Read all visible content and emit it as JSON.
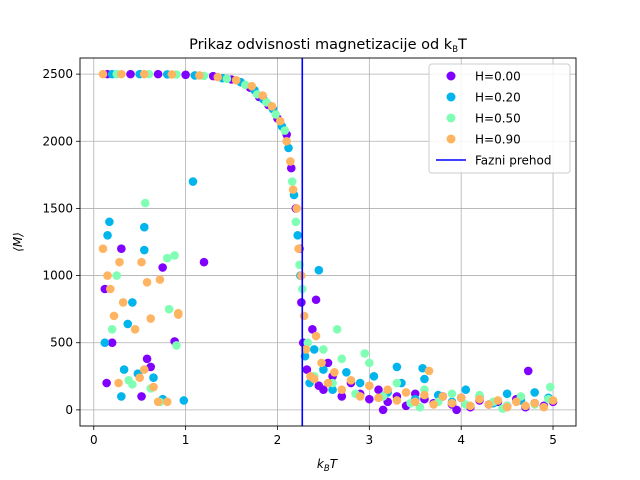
{
  "chart_data": {
    "type": "scatter",
    "title": "Prikaz odvisnosti magnetizacije od k",
    "title_sub": "B",
    "title_tail": "T",
    "xlabel": "k",
    "xlabel_sub": "B",
    "xlabel_tail": "T",
    "ylabel": "⟨M⟩",
    "xlim": [
      -0.15,
      5.25
    ],
    "ylim": [
      -120,
      2620
    ],
    "xticks": [
      0,
      1,
      2,
      3,
      4,
      5
    ],
    "yticks": [
      0,
      500,
      1000,
      1500,
      2000,
      2500
    ],
    "grid": true,
    "legend_position": "top-right",
    "phase_transition": {
      "name": "Fazni prehod",
      "x": 2.27,
      "color": "#0000ff"
    },
    "series": [
      {
        "name": "H=0.00",
        "color": "#8000ff",
        "points": [
          [
            0.12,
            900
          ],
          [
            0.14,
            200
          ],
          [
            0.2,
            500
          ],
          [
            0.3,
            1200
          ],
          [
            0.52,
            100
          ],
          [
            0.58,
            380
          ],
          [
            0.62,
            320
          ],
          [
            0.75,
            1060
          ],
          [
            0.88,
            510
          ],
          [
            1.2,
            1100
          ],
          [
            0.15,
            2500
          ],
          [
            0.4,
            2500
          ],
          [
            0.7,
            2500
          ],
          [
            1.0,
            2495
          ],
          [
            1.3,
            2485
          ],
          [
            1.5,
            2460
          ],
          [
            1.7,
            2400
          ],
          [
            1.8,
            2330
          ],
          [
            1.9,
            2270
          ],
          [
            2.0,
            2170
          ],
          [
            2.1,
            2050
          ],
          [
            2.15,
            1800
          ],
          [
            2.2,
            1500
          ],
          [
            2.24,
            1200
          ],
          [
            2.26,
            800
          ],
          [
            2.28,
            500
          ],
          [
            2.32,
            300
          ],
          [
            2.38,
            600
          ],
          [
            2.45,
            180
          ],
          [
            2.5,
            150
          ],
          [
            2.6,
            250
          ],
          [
            2.7,
            100
          ],
          [
            2.8,
            200
          ],
          [
            2.9,
            120
          ],
          [
            3.0,
            80
          ],
          [
            3.1,
            150
          ],
          [
            3.2,
            60
          ],
          [
            3.3,
            100
          ],
          [
            3.4,
            30
          ],
          [
            3.5,
            120
          ],
          [
            3.6,
            80
          ],
          [
            3.7,
            50
          ],
          [
            3.8,
            100
          ],
          [
            3.9,
            40
          ],
          [
            4.0,
            90
          ],
          [
            4.1,
            20
          ],
          [
            4.2,
            70
          ],
          [
            4.3,
            40
          ],
          [
            4.4,
            60
          ],
          [
            4.5,
            30
          ],
          [
            4.6,
            80
          ],
          [
            4.7,
            20
          ],
          [
            4.73,
            290
          ],
          [
            4.8,
            50
          ],
          [
            4.9,
            30
          ],
          [
            5.0,
            60
          ],
          [
            2.42,
            820
          ],
          [
            2.55,
            350
          ],
          [
            3.15,
            0
          ],
          [
            3.95,
            0
          ]
        ]
      },
      {
        "name": "H=0.20",
        "color": "#00b4ec",
        "points": [
          [
            0.12,
            500
          ],
          [
            0.15,
            1300
          ],
          [
            0.17,
            1400
          ],
          [
            0.3,
            100
          ],
          [
            0.33,
            300
          ],
          [
            0.37,
            640
          ],
          [
            0.42,
            800
          ],
          [
            0.48,
            270
          ],
          [
            0.55,
            1190
          ],
          [
            0.55,
            1360
          ],
          [
            0.75,
            80
          ],
          [
            0.98,
            70
          ],
          [
            1.08,
            1700
          ],
          [
            0.65,
            240
          ],
          [
            0.2,
            2500
          ],
          [
            0.5,
            2500
          ],
          [
            0.8,
            2498
          ],
          [
            1.1,
            2490
          ],
          [
            1.4,
            2470
          ],
          [
            1.6,
            2440
          ],
          [
            1.75,
            2380
          ],
          [
            1.85,
            2310
          ],
          [
            1.95,
            2240
          ],
          [
            2.05,
            2110
          ],
          [
            2.12,
            1950
          ],
          [
            2.18,
            1600
          ],
          [
            2.22,
            1300
          ],
          [
            2.25,
            1000
          ],
          [
            2.3,
            400
          ],
          [
            2.35,
            200
          ],
          [
            2.4,
            450
          ],
          [
            2.5,
            300
          ],
          [
            2.6,
            150
          ],
          [
            2.75,
            280
          ],
          [
            2.9,
            200
          ],
          [
            3.05,
            250
          ],
          [
            3.2,
            130
          ],
          [
            3.35,
            200
          ],
          [
            3.5,
            80
          ],
          [
            3.6,
            230
          ],
          [
            3.75,
            110
          ],
          [
            3.9,
            60
          ],
          [
            4.05,
            150
          ],
          [
            4.2,
            100
          ],
          [
            4.35,
            50
          ],
          [
            4.5,
            120
          ],
          [
            4.65,
            70
          ],
          [
            4.8,
            130
          ],
          [
            4.95,
            90
          ],
          [
            2.45,
            1040
          ],
          [
            3.3,
            320
          ],
          [
            3.58,
            310
          ]
        ]
      },
      {
        "name": "H=0.50",
        "color": "#80ffb4",
        "points": [
          [
            0.2,
            600
          ],
          [
            0.25,
            1000
          ],
          [
            0.38,
            220
          ],
          [
            0.42,
            190
          ],
          [
            0.56,
            1540
          ],
          [
            0.62,
            160
          ],
          [
            0.72,
            60
          ],
          [
            0.8,
            1130
          ],
          [
            0.82,
            750
          ],
          [
            0.88,
            1150
          ],
          [
            0.9,
            480
          ],
          [
            0.25,
            2500
          ],
          [
            0.6,
            2500
          ],
          [
            0.9,
            2497
          ],
          [
            1.2,
            2487
          ],
          [
            1.45,
            2465
          ],
          [
            1.65,
            2420
          ],
          [
            1.78,
            2350
          ],
          [
            1.88,
            2290
          ],
          [
            1.98,
            2200
          ],
          [
            2.08,
            2080
          ],
          [
            2.16,
            1700
          ],
          [
            2.2,
            1400
          ],
          [
            2.24,
            1080
          ],
          [
            2.27,
            900
          ],
          [
            2.33,
            500
          ],
          [
            2.4,
            250
          ],
          [
            2.5,
            450
          ],
          [
            2.6,
            200
          ],
          [
            2.7,
            380
          ],
          [
            2.85,
            120
          ],
          [
            3.0,
            350
          ],
          [
            3.15,
            100
          ],
          [
            3.3,
            200
          ],
          [
            3.45,
            50
          ],
          [
            3.6,
            150
          ],
          [
            3.75,
            60
          ],
          [
            3.9,
            120
          ],
          [
            4.05,
            40
          ],
          [
            4.2,
            110
          ],
          [
            4.35,
            60
          ],
          [
            4.5,
            30
          ],
          [
            4.65,
            100
          ],
          [
            4.8,
            40
          ],
          [
            4.95,
            80
          ],
          [
            2.65,
            600
          ],
          [
            2.95,
            420
          ],
          [
            4.97,
            170
          ],
          [
            3.55,
            20
          ],
          [
            4.45,
            10
          ]
        ]
      },
      {
        "name": "H=0.90",
        "color": "#ffb462",
        "points": [
          [
            0.1,
            1200
          ],
          [
            0.15,
            1000
          ],
          [
            0.18,
            900
          ],
          [
            0.22,
            700
          ],
          [
            0.27,
            200
          ],
          [
            0.28,
            1100
          ],
          [
            0.32,
            800
          ],
          [
            0.45,
            600
          ],
          [
            0.5,
            240
          ],
          [
            0.52,
            1100
          ],
          [
            0.55,
            300
          ],
          [
            0.58,
            950
          ],
          [
            0.62,
            680
          ],
          [
            0.65,
            170
          ],
          [
            0.7,
            60
          ],
          [
            0.72,
            970
          ],
          [
            0.8,
            60
          ],
          [
            0.92,
            710
          ],
          [
            0.92,
            720
          ],
          [
            0.1,
            2500
          ],
          [
            0.3,
            2500
          ],
          [
            0.55,
            2500
          ],
          [
            0.85,
            2498
          ],
          [
            1.15,
            2490
          ],
          [
            1.35,
            2478
          ],
          [
            1.55,
            2455
          ],
          [
            1.72,
            2410
          ],
          [
            1.84,
            2340
          ],
          [
            1.94,
            2260
          ],
          [
            2.03,
            2150
          ],
          [
            2.1,
            2000
          ],
          [
            2.14,
            1850
          ],
          [
            2.17,
            1640
          ],
          [
            2.21,
            1500
          ],
          [
            2.23,
            1200
          ],
          [
            2.26,
            1000
          ],
          [
            2.29,
            700
          ],
          [
            2.31,
            450
          ],
          [
            2.36,
            250
          ],
          [
            2.42,
            550
          ],
          [
            2.48,
            350
          ],
          [
            2.55,
            200
          ],
          [
            2.62,
            280
          ],
          [
            2.7,
            150
          ],
          [
            2.8,
            220
          ],
          [
            2.9,
            100
          ],
          [
            3.0,
            180
          ],
          [
            3.1,
            90
          ],
          [
            3.2,
            150
          ],
          [
            3.3,
            70
          ],
          [
            3.4,
            130
          ],
          [
            3.5,
            60
          ],
          [
            3.6,
            110
          ],
          [
            3.7,
            40
          ],
          [
            3.8,
            100
          ],
          [
            3.9,
            50
          ],
          [
            4.0,
            90
          ],
          [
            4.1,
            30
          ],
          [
            4.2,
            80
          ],
          [
            4.3,
            40
          ],
          [
            4.4,
            70
          ],
          [
            4.5,
            20
          ],
          [
            4.6,
            60
          ],
          [
            4.7,
            30
          ],
          [
            4.8,
            50
          ],
          [
            4.9,
            20
          ],
          [
            5.0,
            70
          ],
          [
            2.4,
            230
          ],
          [
            3.65,
            290
          ]
        ]
      }
    ]
  }
}
